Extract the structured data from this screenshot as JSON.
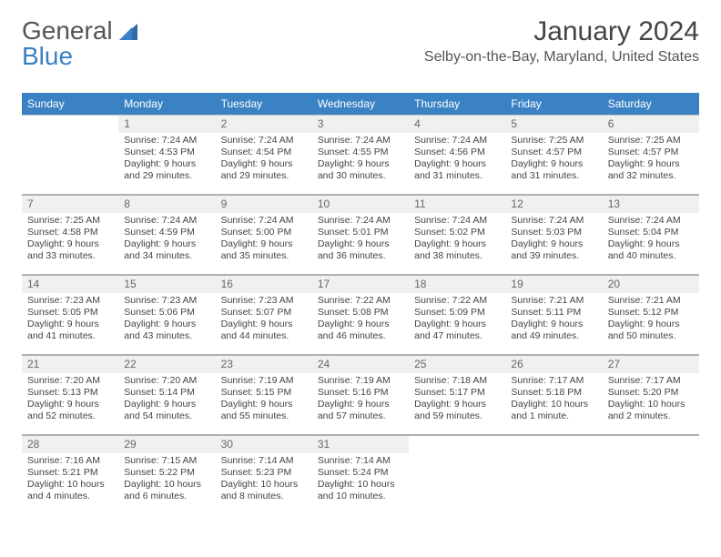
{
  "logo": {
    "part1": "General",
    "part2": "Blue"
  },
  "header": {
    "month_title": "January 2024",
    "location": "Selby-on-the-Bay, Maryland, United States"
  },
  "colors": {
    "header_bar": "#3b82c4",
    "logo_blue": "#3b7fc4",
    "divider": "#b0b0b0",
    "daynum_bg": "#f0f0f0"
  },
  "dow": [
    "Sunday",
    "Monday",
    "Tuesday",
    "Wednesday",
    "Thursday",
    "Friday",
    "Saturday"
  ],
  "weeks": [
    [
      {
        "num": "",
        "sunrise": "",
        "sunset": "",
        "daylight": ""
      },
      {
        "num": "1",
        "sunrise": "Sunrise: 7:24 AM",
        "sunset": "Sunset: 4:53 PM",
        "daylight": "Daylight: 9 hours and 29 minutes."
      },
      {
        "num": "2",
        "sunrise": "Sunrise: 7:24 AM",
        "sunset": "Sunset: 4:54 PM",
        "daylight": "Daylight: 9 hours and 29 minutes."
      },
      {
        "num": "3",
        "sunrise": "Sunrise: 7:24 AM",
        "sunset": "Sunset: 4:55 PM",
        "daylight": "Daylight: 9 hours and 30 minutes."
      },
      {
        "num": "4",
        "sunrise": "Sunrise: 7:24 AM",
        "sunset": "Sunset: 4:56 PM",
        "daylight": "Daylight: 9 hours and 31 minutes."
      },
      {
        "num": "5",
        "sunrise": "Sunrise: 7:25 AM",
        "sunset": "Sunset: 4:57 PM",
        "daylight": "Daylight: 9 hours and 31 minutes."
      },
      {
        "num": "6",
        "sunrise": "Sunrise: 7:25 AM",
        "sunset": "Sunset: 4:57 PM",
        "daylight": "Daylight: 9 hours and 32 minutes."
      }
    ],
    [
      {
        "num": "7",
        "sunrise": "Sunrise: 7:25 AM",
        "sunset": "Sunset: 4:58 PM",
        "daylight": "Daylight: 9 hours and 33 minutes."
      },
      {
        "num": "8",
        "sunrise": "Sunrise: 7:24 AM",
        "sunset": "Sunset: 4:59 PM",
        "daylight": "Daylight: 9 hours and 34 minutes."
      },
      {
        "num": "9",
        "sunrise": "Sunrise: 7:24 AM",
        "sunset": "Sunset: 5:00 PM",
        "daylight": "Daylight: 9 hours and 35 minutes."
      },
      {
        "num": "10",
        "sunrise": "Sunrise: 7:24 AM",
        "sunset": "Sunset: 5:01 PM",
        "daylight": "Daylight: 9 hours and 36 minutes."
      },
      {
        "num": "11",
        "sunrise": "Sunrise: 7:24 AM",
        "sunset": "Sunset: 5:02 PM",
        "daylight": "Daylight: 9 hours and 38 minutes."
      },
      {
        "num": "12",
        "sunrise": "Sunrise: 7:24 AM",
        "sunset": "Sunset: 5:03 PM",
        "daylight": "Daylight: 9 hours and 39 minutes."
      },
      {
        "num": "13",
        "sunrise": "Sunrise: 7:24 AM",
        "sunset": "Sunset: 5:04 PM",
        "daylight": "Daylight: 9 hours and 40 minutes."
      }
    ],
    [
      {
        "num": "14",
        "sunrise": "Sunrise: 7:23 AM",
        "sunset": "Sunset: 5:05 PM",
        "daylight": "Daylight: 9 hours and 41 minutes."
      },
      {
        "num": "15",
        "sunrise": "Sunrise: 7:23 AM",
        "sunset": "Sunset: 5:06 PM",
        "daylight": "Daylight: 9 hours and 43 minutes."
      },
      {
        "num": "16",
        "sunrise": "Sunrise: 7:23 AM",
        "sunset": "Sunset: 5:07 PM",
        "daylight": "Daylight: 9 hours and 44 minutes."
      },
      {
        "num": "17",
        "sunrise": "Sunrise: 7:22 AM",
        "sunset": "Sunset: 5:08 PM",
        "daylight": "Daylight: 9 hours and 46 minutes."
      },
      {
        "num": "18",
        "sunrise": "Sunrise: 7:22 AM",
        "sunset": "Sunset: 5:09 PM",
        "daylight": "Daylight: 9 hours and 47 minutes."
      },
      {
        "num": "19",
        "sunrise": "Sunrise: 7:21 AM",
        "sunset": "Sunset: 5:11 PM",
        "daylight": "Daylight: 9 hours and 49 minutes."
      },
      {
        "num": "20",
        "sunrise": "Sunrise: 7:21 AM",
        "sunset": "Sunset: 5:12 PM",
        "daylight": "Daylight: 9 hours and 50 minutes."
      }
    ],
    [
      {
        "num": "21",
        "sunrise": "Sunrise: 7:20 AM",
        "sunset": "Sunset: 5:13 PM",
        "daylight": "Daylight: 9 hours and 52 minutes."
      },
      {
        "num": "22",
        "sunrise": "Sunrise: 7:20 AM",
        "sunset": "Sunset: 5:14 PM",
        "daylight": "Daylight: 9 hours and 54 minutes."
      },
      {
        "num": "23",
        "sunrise": "Sunrise: 7:19 AM",
        "sunset": "Sunset: 5:15 PM",
        "daylight": "Daylight: 9 hours and 55 minutes."
      },
      {
        "num": "24",
        "sunrise": "Sunrise: 7:19 AM",
        "sunset": "Sunset: 5:16 PM",
        "daylight": "Daylight: 9 hours and 57 minutes."
      },
      {
        "num": "25",
        "sunrise": "Sunrise: 7:18 AM",
        "sunset": "Sunset: 5:17 PM",
        "daylight": "Daylight: 9 hours and 59 minutes."
      },
      {
        "num": "26",
        "sunrise": "Sunrise: 7:17 AM",
        "sunset": "Sunset: 5:18 PM",
        "daylight": "Daylight: 10 hours and 1 minute."
      },
      {
        "num": "27",
        "sunrise": "Sunrise: 7:17 AM",
        "sunset": "Sunset: 5:20 PM",
        "daylight": "Daylight: 10 hours and 2 minutes."
      }
    ],
    [
      {
        "num": "28",
        "sunrise": "Sunrise: 7:16 AM",
        "sunset": "Sunset: 5:21 PM",
        "daylight": "Daylight: 10 hours and 4 minutes."
      },
      {
        "num": "29",
        "sunrise": "Sunrise: 7:15 AM",
        "sunset": "Sunset: 5:22 PM",
        "daylight": "Daylight: 10 hours and 6 minutes."
      },
      {
        "num": "30",
        "sunrise": "Sunrise: 7:14 AM",
        "sunset": "Sunset: 5:23 PM",
        "daylight": "Daylight: 10 hours and 8 minutes."
      },
      {
        "num": "31",
        "sunrise": "Sunrise: 7:14 AM",
        "sunset": "Sunset: 5:24 PM",
        "daylight": "Daylight: 10 hours and 10 minutes."
      },
      {
        "num": "",
        "sunrise": "",
        "sunset": "",
        "daylight": ""
      },
      {
        "num": "",
        "sunrise": "",
        "sunset": "",
        "daylight": ""
      },
      {
        "num": "",
        "sunrise": "",
        "sunset": "",
        "daylight": ""
      }
    ]
  ]
}
